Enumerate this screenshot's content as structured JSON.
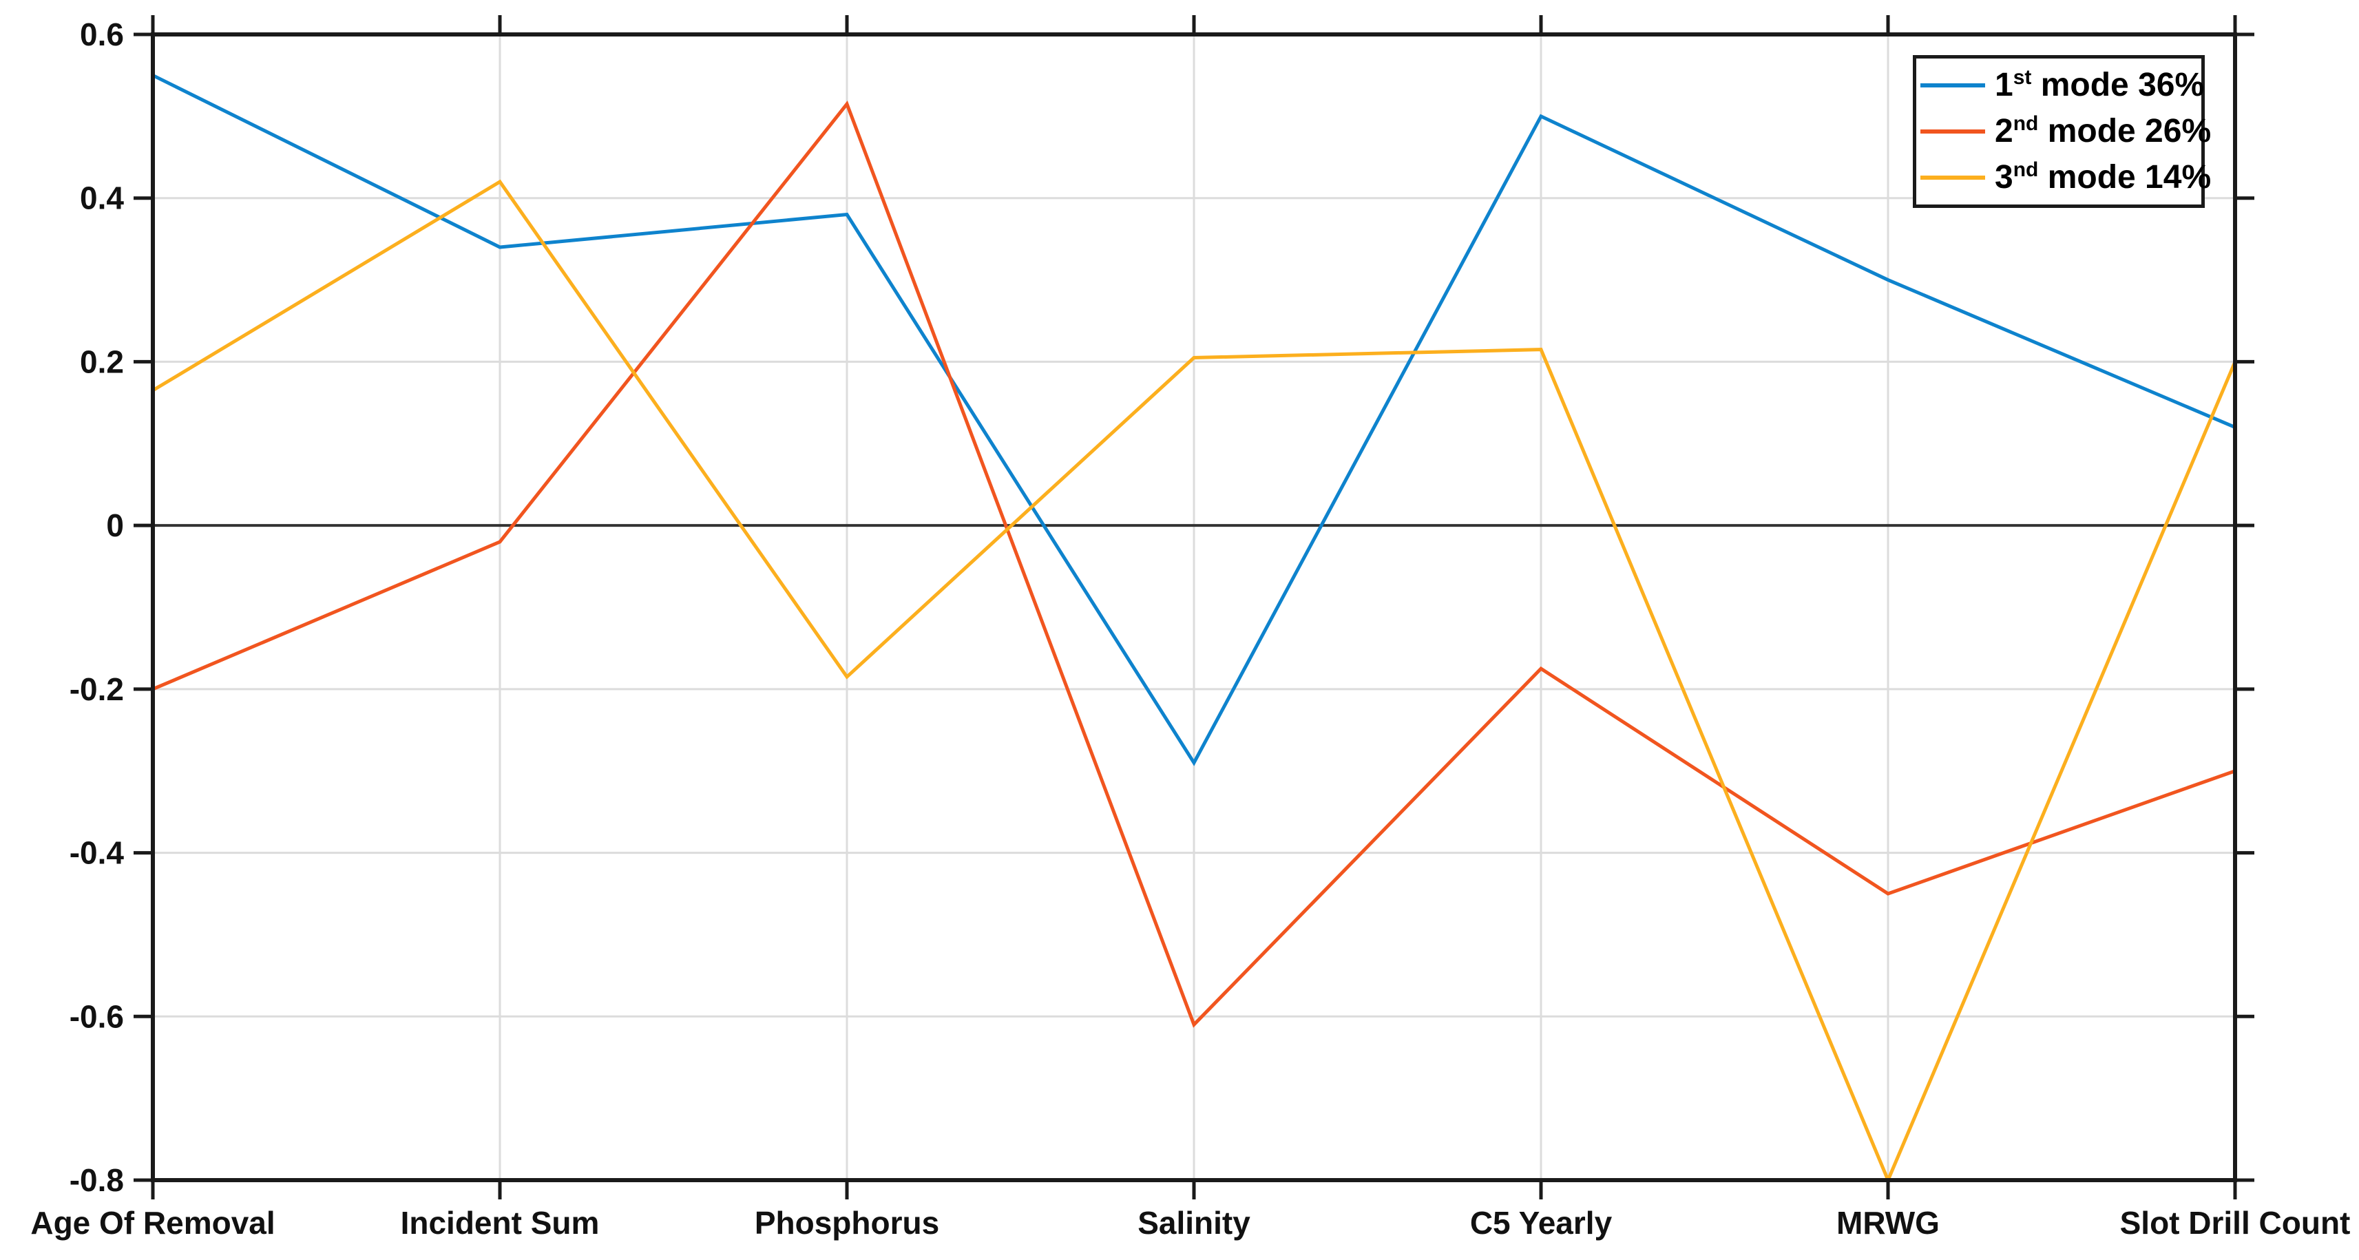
{
  "figure": {
    "background": "#ffffff"
  },
  "chart_data": {
    "type": "line",
    "title": "",
    "xlabel": "",
    "ylabel": "",
    "grid": true,
    "zero_line": true,
    "legend_position": "top-right",
    "categories": [
      "Age Of Removal",
      "Incident Sum",
      "Phosphorus",
      "Salinity",
      "C5 Yearly",
      "MRWG",
      "Slot Drill Count"
    ],
    "ylim": [
      -0.8,
      0.6
    ],
    "yticks": [
      0.6,
      0.4,
      0.2,
      0,
      -0.2,
      -0.4,
      -0.6,
      -0.8
    ],
    "ytick_labels": [
      "0.6",
      "0.4",
      "0.2",
      "0",
      "-0.2",
      "-0.4",
      "-0.6",
      "-0.8"
    ],
    "series": [
      {
        "name": "1st mode 36%",
        "color": "#0E83CD",
        "values": [
          0.55,
          0.34,
          0.38,
          -0.29,
          0.5,
          0.3,
          0.12
        ]
      },
      {
        "name": "2nd mode 26%",
        "color": "#F1551F",
        "values": [
          -0.2,
          -0.02,
          0.515,
          -0.61,
          -0.175,
          -0.45,
          -0.3
        ]
      },
      {
        "name": "3nd mode 14%",
        "color": "#FCAF1E",
        "values": [
          0.165,
          0.42,
          -0.185,
          0.205,
          0.215,
          -0.8,
          0.2
        ]
      }
    ]
  },
  "legend": {
    "items": [
      {
        "num": "1",
        "sup": "st",
        "rest": " mode 36%"
      },
      {
        "num": "2",
        "sup": "nd",
        "rest": " mode 26%"
      },
      {
        "num": "3",
        "sup": "nd",
        "rest": " mode 14%"
      }
    ]
  },
  "colors": {
    "axis": "#1a1a1a",
    "grid": "#dcdcdc",
    "zero_line": "#333333",
    "tick_text": "#111111"
  }
}
